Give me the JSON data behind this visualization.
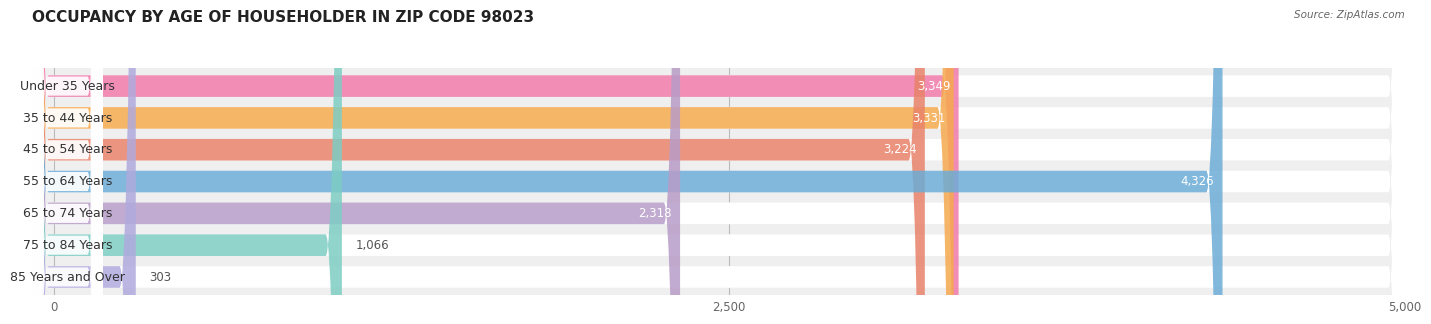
{
  "title": "OCCUPANCY BY AGE OF HOUSEHOLDER IN ZIP CODE 98023",
  "source": "Source: ZipAtlas.com",
  "categories": [
    "Under 35 Years",
    "35 to 44 Years",
    "45 to 54 Years",
    "55 to 64 Years",
    "65 to 74 Years",
    "75 to 84 Years",
    "85 Years and Over"
  ],
  "values": [
    3349,
    3331,
    3224,
    4326,
    2318,
    1066,
    303
  ],
  "bar_colors": [
    "#F07AAA",
    "#F5A94E",
    "#E8836A",
    "#6BACD6",
    "#B89CC8",
    "#7DCDC4",
    "#B0AADD"
  ],
  "xlim_left": -80,
  "xlim_right": 5000,
  "xticks": [
    0,
    2500,
    5000
  ],
  "xticklabels": [
    "0",
    "2,500",
    "5,000"
  ],
  "title_fontsize": 11,
  "label_fontsize": 9,
  "value_fontsize": 8.5,
  "bg_between_bars": "#f0f0f0",
  "bar_bg_color": "#ffffff",
  "bar_row_bg": "#eeeeee"
}
